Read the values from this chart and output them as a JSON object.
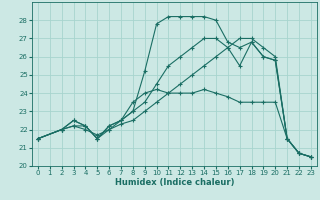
{
  "xlabel": "Humidex (Indice chaleur)",
  "background_color": "#cce8e4",
  "grid_color": "#a8d4ce",
  "line_color": "#1a6e64",
  "xlim": [
    -0.5,
    23.5
  ],
  "ylim": [
    20,
    29
  ],
  "xticks": [
    0,
    1,
    2,
    3,
    4,
    5,
    6,
    7,
    8,
    9,
    10,
    11,
    12,
    13,
    14,
    15,
    16,
    17,
    18,
    19,
    20,
    21,
    22,
    23
  ],
  "yticks": [
    20,
    21,
    22,
    23,
    24,
    25,
    26,
    27,
    28
  ],
  "line1_x": [
    0,
    2,
    3,
    4,
    5,
    6,
    7,
    8,
    9,
    10,
    11,
    12,
    13,
    14,
    15,
    16,
    17,
    18,
    19,
    20,
    21,
    22,
    23
  ],
  "line1_y": [
    21.5,
    22.0,
    22.5,
    22.2,
    21.5,
    22.2,
    22.5,
    23.0,
    25.2,
    27.8,
    28.2,
    28.2,
    28.2,
    28.2,
    28.0,
    26.8,
    26.5,
    26.8,
    26.0,
    25.8,
    21.5,
    20.7,
    20.5
  ],
  "line2_x": [
    0,
    2,
    3,
    4,
    5,
    6,
    7,
    8,
    9,
    10,
    11,
    12,
    13,
    14,
    15,
    16,
    17,
    18,
    19,
    20,
    21,
    22,
    23
  ],
  "line2_y": [
    21.5,
    22.0,
    22.5,
    22.2,
    21.5,
    22.2,
    22.5,
    23.5,
    24.0,
    24.2,
    24.0,
    24.0,
    24.0,
    24.2,
    24.0,
    23.8,
    23.5,
    23.5,
    23.5,
    23.5,
    21.5,
    20.7,
    20.5
  ],
  "line3_x": [
    0,
    2,
    3,
    4,
    5,
    6,
    7,
    8,
    9,
    10,
    11,
    12,
    13,
    14,
    15,
    16,
    17,
    18,
    19,
    20,
    21,
    22,
    23
  ],
  "line3_y": [
    21.5,
    22.0,
    22.2,
    22.0,
    21.7,
    22.0,
    22.5,
    23.0,
    23.5,
    24.5,
    25.5,
    26.0,
    26.5,
    27.0,
    27.0,
    26.5,
    25.5,
    26.8,
    26.0,
    25.8,
    21.5,
    20.7,
    20.5
  ],
  "line4_x": [
    0,
    2,
    3,
    4,
    5,
    6,
    7,
    8,
    9,
    10,
    11,
    12,
    13,
    14,
    15,
    16,
    17,
    18,
    19,
    20,
    21,
    22,
    23
  ],
  "line4_y": [
    21.5,
    22.0,
    22.2,
    22.2,
    21.5,
    22.0,
    22.3,
    22.5,
    23.0,
    23.5,
    24.0,
    24.5,
    25.0,
    25.5,
    26.0,
    26.5,
    27.0,
    27.0,
    26.5,
    26.0,
    21.5,
    20.7,
    20.5
  ]
}
